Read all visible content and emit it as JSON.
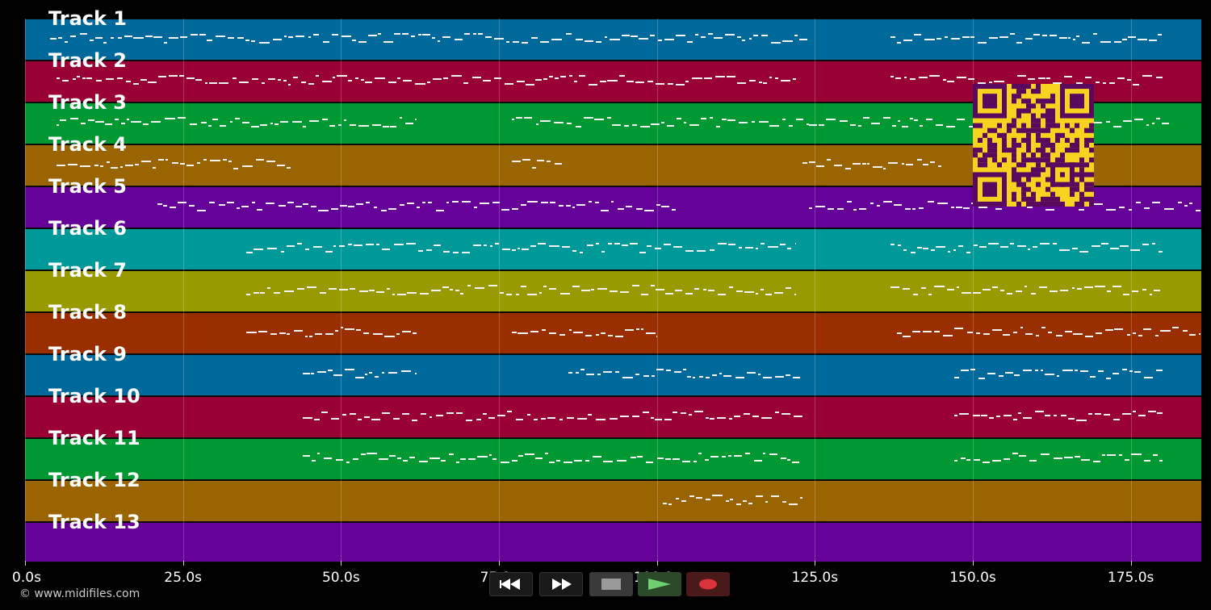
{
  "viewer": {
    "tracks": [
      {
        "label": "Track 1",
        "color": "#00699b"
      },
      {
        "label": "Track 2",
        "color": "#990036"
      },
      {
        "label": "Track 3",
        "color": "#009832"
      },
      {
        "label": "Track 4",
        "color": "#9a6400"
      },
      {
        "label": "Track 5",
        "color": "#650099"
      },
      {
        "label": "Track 6",
        "color": "#00999a"
      },
      {
        "label": "Track 7",
        "color": "#999a00"
      },
      {
        "label": "Track 8",
        "color": "#992e00"
      },
      {
        "label": "Track 9",
        "color": "#00699b"
      },
      {
        "label": "Track 10",
        "color": "#990036"
      },
      {
        "label": "Track 11",
        "color": "#009832"
      },
      {
        "label": "Track 12",
        "color": "#9a6400"
      },
      {
        "label": "Track 13",
        "color": "#650099"
      }
    ],
    "time_axis": {
      "ticks": [
        "0.0s",
        "25.0s",
        "50.0s",
        "75.0s",
        "100.0s",
        "125.0s",
        "150.0s",
        "175.0s"
      ],
      "tick_values": [
        0,
        25,
        50,
        75,
        100,
        125,
        150,
        175
      ],
      "max_seconds": 186
    },
    "copyright": "© www.midifiles.com",
    "qr_color": "#f7d21e",
    "qr_dark": "#5a0a5e"
  },
  "transport": {
    "rewind_icon": "rewind-icon",
    "fast_forward_icon": "fast-forward-icon",
    "stop_icon": "stop-icon",
    "play_icon": "play-icon",
    "record_icon": "record-icon"
  }
}
